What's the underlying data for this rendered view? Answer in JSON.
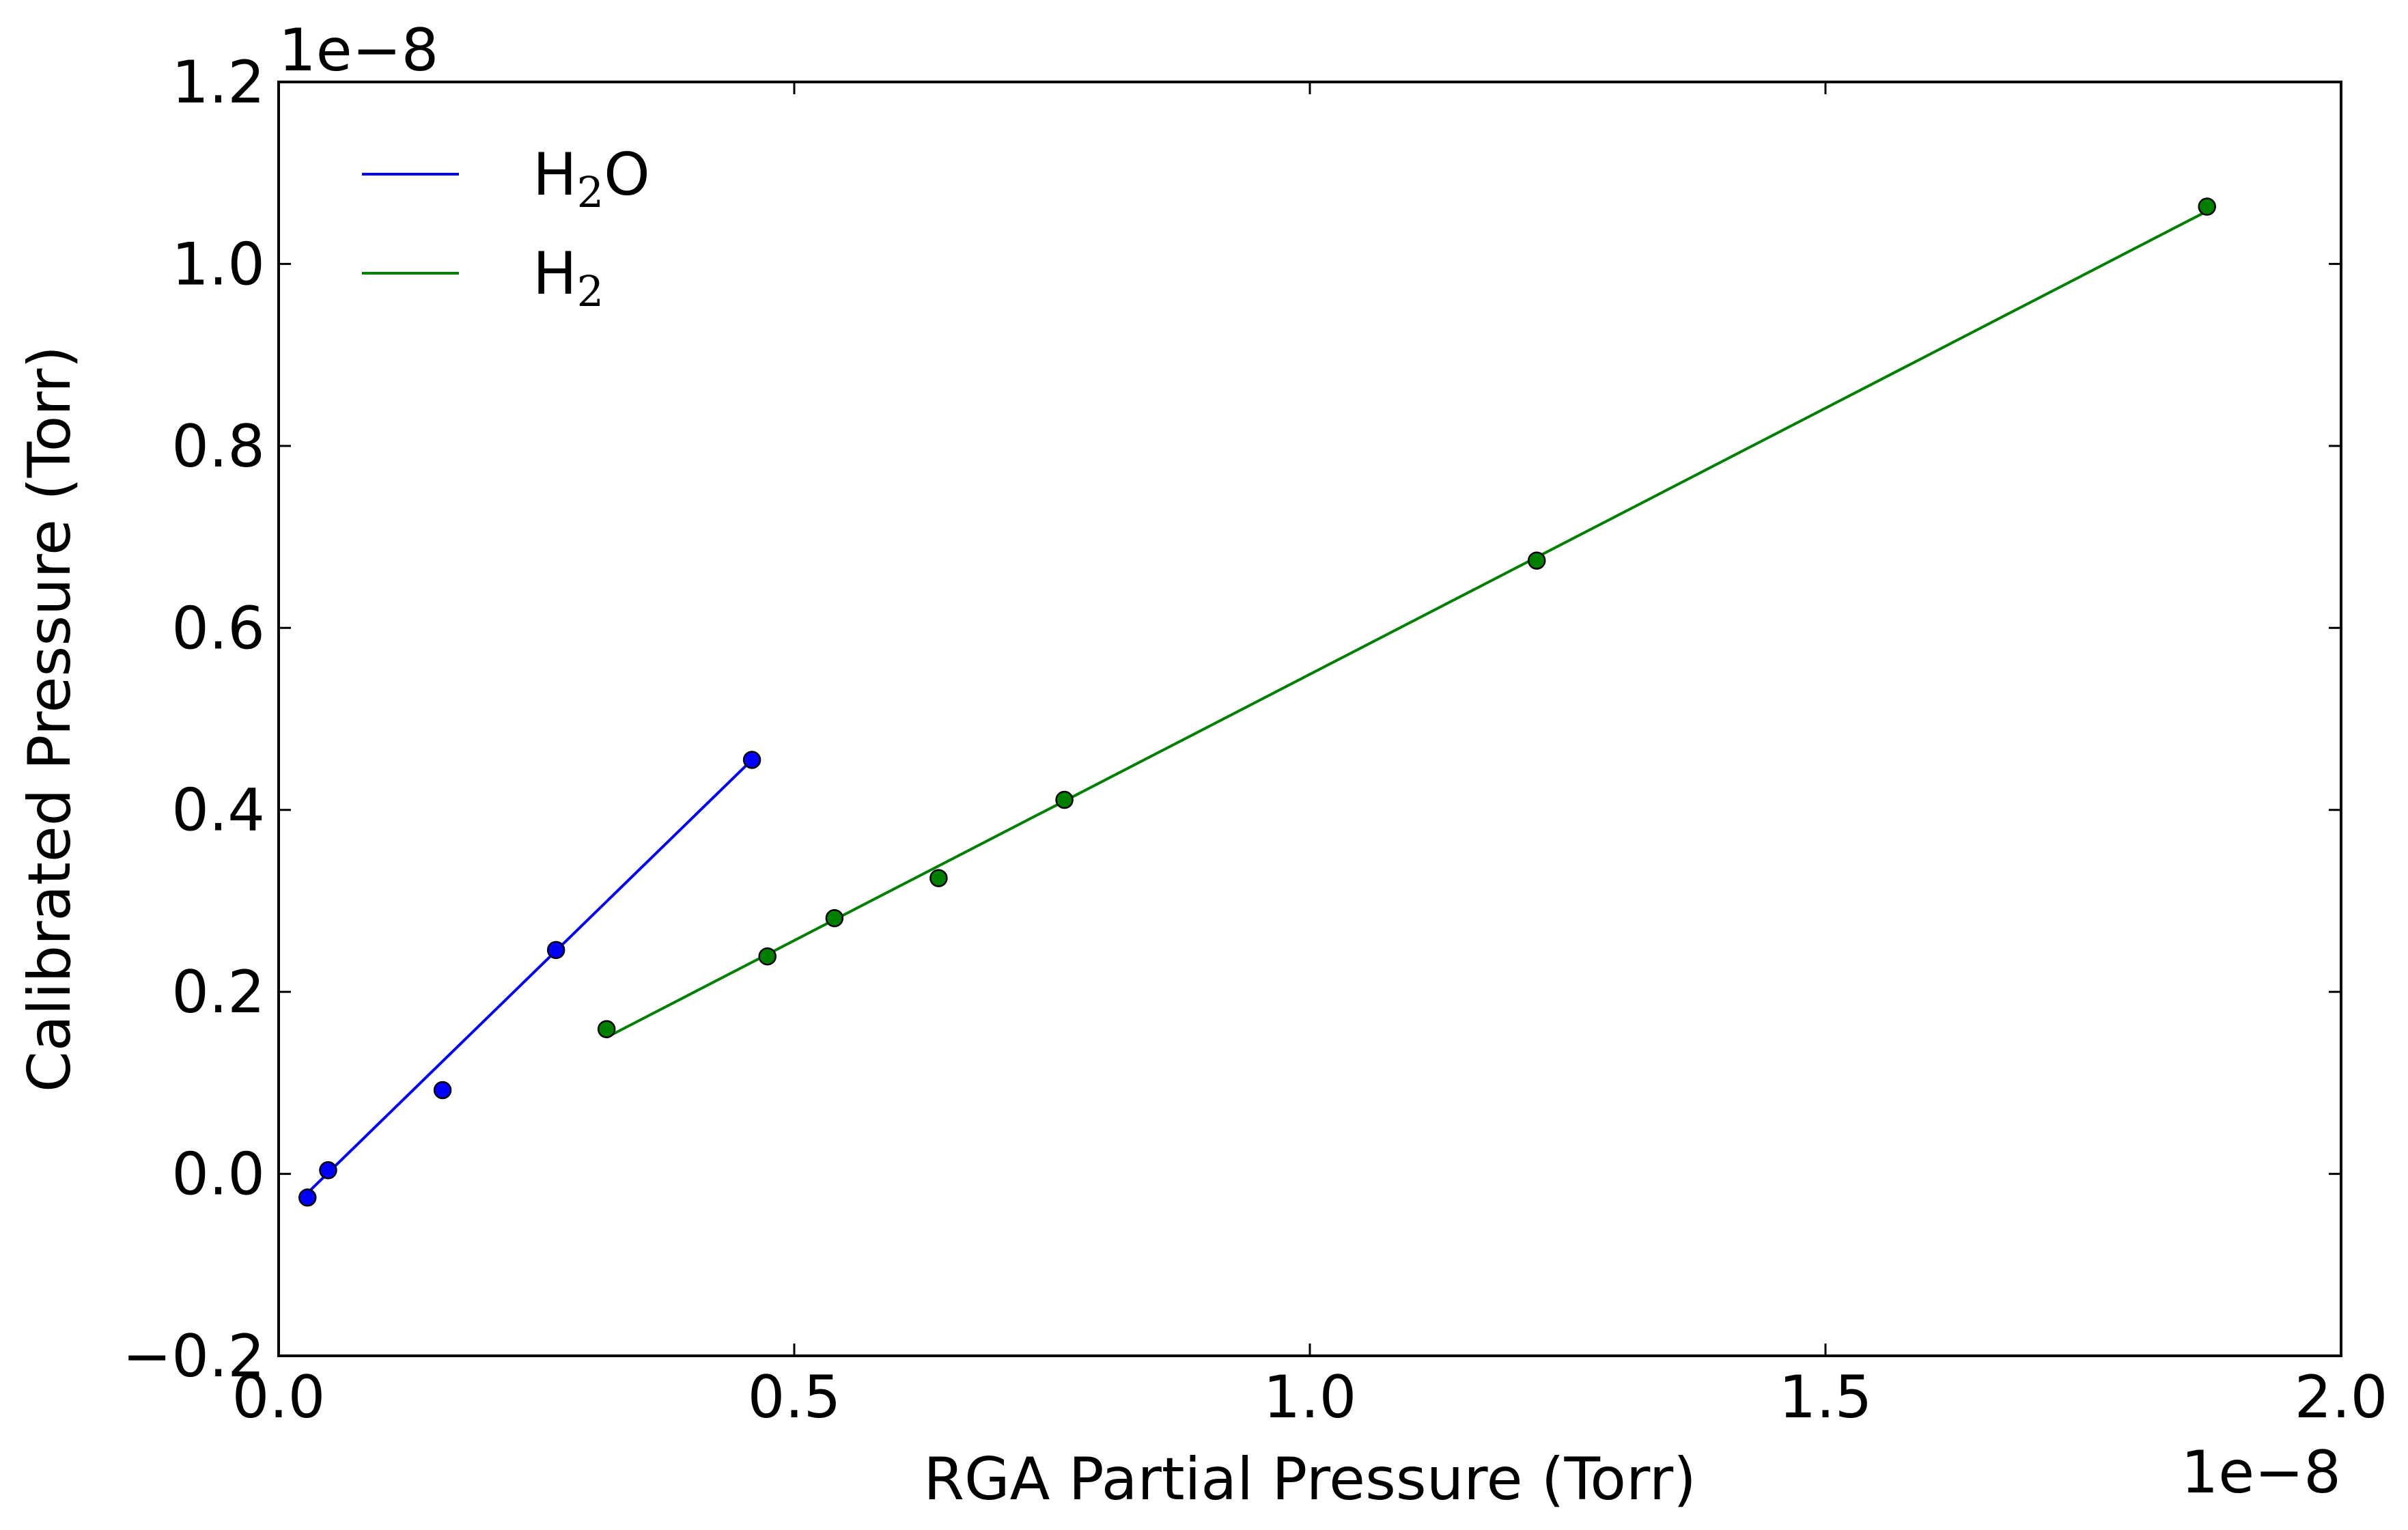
{
  "chart_data": {
    "type": "line",
    "xlabel": "RGA Partial Pressure (Torr)",
    "ylabel": "Calibrated Pressure (Torr)",
    "x_offset_label": "1e−8",
    "y_offset_label": "1e−8",
    "xlim": [
      0.0,
      2.0
    ],
    "ylim": [
      -0.2,
      1.2
    ],
    "x_ticks": [
      0.0,
      0.5,
      1.0,
      1.5,
      2.0
    ],
    "x_tick_labels": [
      "0.0",
      "0.5",
      "1.0",
      "1.5",
      "2.0"
    ],
    "y_ticks": [
      -0.2,
      0.0,
      0.2,
      0.4,
      0.6,
      0.8,
      1.0,
      1.2
    ],
    "y_tick_labels": [
      "−0.2",
      "0.0",
      "0.2",
      "0.4",
      "0.6",
      "0.8",
      "1.0",
      "1.2"
    ],
    "grid": false,
    "legend_position": "top-left",
    "series": [
      {
        "name": "H2O",
        "legend_base": "H",
        "legend_sub": "2",
        "legend_tail": "O",
        "color": "#0000ff",
        "points_x": [
          0.028,
          0.048,
          0.159,
          0.269,
          0.459
        ],
        "points_y": [
          -0.026,
          0.004,
          0.092,
          0.246,
          0.455
        ],
        "fit_x": [
          0.028,
          0.459
        ],
        "fit_y": [
          -0.021,
          0.455
        ]
      },
      {
        "name": "H2",
        "legend_base": "H",
        "legend_sub": "2",
        "legend_tail": "",
        "color": "#008000",
        "points_x": [
          0.318,
          0.474,
          0.539,
          0.64,
          0.762,
          1.22,
          1.87
        ],
        "points_y": [
          0.159,
          0.239,
          0.281,
          0.325,
          0.411,
          0.674,
          1.063
        ],
        "fit_x": [
          0.318,
          1.87
        ],
        "fit_y": [
          0.15,
          1.058
        ]
      }
    ]
  }
}
